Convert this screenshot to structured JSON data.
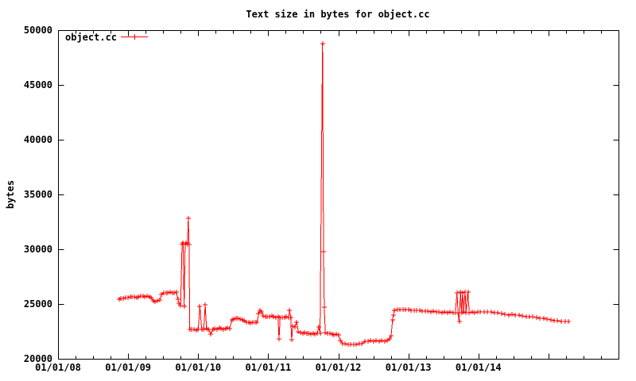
{
  "title": "Text size in bytes for object.cc",
  "colors": {
    "series": "#ff0000",
    "axis": "#000000",
    "background": "#ffffff"
  },
  "chart_data": {
    "type": "line",
    "title": "Text size in bytes for object.cc",
    "xlabel": "",
    "ylabel": "bytes",
    "grid": false,
    "legend_position": "top-left",
    "legend": {
      "label": "object.cc",
      "color": "#ff0000",
      "marker": "plus"
    },
    "ylim": [
      20000,
      50000
    ],
    "y_ticks": [
      {
        "value": 20000,
        "label": "20000"
      },
      {
        "value": 25000,
        "label": "25000"
      },
      {
        "value": 30000,
        "label": "30000"
      },
      {
        "value": 35000,
        "label": "35000"
      },
      {
        "value": 40000,
        "label": "40000"
      },
      {
        "value": 45000,
        "label": "45000"
      },
      {
        "value": 50000,
        "label": "50000"
      }
    ],
    "x_range_years": [
      2008,
      2016
    ],
    "x_minor_tick_interval_years": 0.25,
    "x_ticks": [
      {
        "year": 2008,
        "label": "01/01/08"
      },
      {
        "year": 2009,
        "label": "01/01/09"
      },
      {
        "year": 2010,
        "label": "01/01/10"
      },
      {
        "year": 2011,
        "label": "01/01/11"
      },
      {
        "year": 2012,
        "label": "01/01/12"
      },
      {
        "year": 2013,
        "label": "01/01/13"
      },
      {
        "year": 2014,
        "label": "01/01/14"
      }
    ],
    "series": [
      {
        "name": "object.cc",
        "color": "#ff0000",
        "marker": "plus",
        "points": [
          [
            2008.87,
            25400
          ],
          [
            2008.9,
            25480
          ],
          [
            2008.93,
            25520
          ],
          [
            2008.96,
            25560
          ],
          [
            2009.0,
            25600
          ],
          [
            2009.03,
            25640
          ],
          [
            2009.06,
            25680
          ],
          [
            2009.09,
            25620
          ],
          [
            2009.12,
            25560
          ],
          [
            2009.15,
            25680
          ],
          [
            2009.18,
            25740
          ],
          [
            2009.21,
            25700
          ],
          [
            2009.24,
            25640
          ],
          [
            2009.27,
            25700
          ],
          [
            2009.3,
            25660
          ],
          [
            2009.33,
            25600
          ],
          [
            2009.36,
            25280
          ],
          [
            2009.39,
            25200
          ],
          [
            2009.42,
            25260
          ],
          [
            2009.45,
            25360
          ],
          [
            2009.48,
            25900
          ],
          [
            2009.51,
            26000
          ],
          [
            2009.54,
            26040
          ],
          [
            2009.57,
            26000
          ],
          [
            2009.6,
            26080
          ],
          [
            2009.63,
            26040
          ],
          [
            2009.66,
            26000
          ],
          [
            2009.69,
            26100
          ],
          [
            2009.71,
            25400
          ],
          [
            2009.73,
            25050
          ],
          [
            2009.75,
            24850
          ],
          [
            2009.77,
            30400
          ],
          [
            2009.785,
            30550
          ],
          [
            2009.8,
            24800
          ],
          [
            2009.815,
            30450
          ],
          [
            2009.83,
            30600
          ],
          [
            2009.845,
            30400
          ],
          [
            2009.86,
            32800
          ],
          [
            2009.87,
            30400
          ],
          [
            2009.88,
            22650
          ],
          [
            2009.91,
            22700
          ],
          [
            2009.94,
            22650
          ],
          [
            2009.97,
            22600
          ],
          [
            2010.0,
            22700
          ],
          [
            2010.025,
            24750
          ],
          [
            2010.05,
            22650
          ],
          [
            2010.08,
            22700
          ],
          [
            2010.1,
            24900
          ],
          [
            2010.12,
            22750
          ],
          [
            2010.15,
            22700
          ],
          [
            2010.18,
            22250
          ],
          [
            2010.21,
            22700
          ],
          [
            2010.24,
            22760
          ],
          [
            2010.27,
            22700
          ],
          [
            2010.3,
            22800
          ],
          [
            2010.33,
            22740
          ],
          [
            2010.36,
            22700
          ],
          [
            2010.39,
            22760
          ],
          [
            2010.42,
            22800
          ],
          [
            2010.45,
            22750
          ],
          [
            2010.48,
            23560
          ],
          [
            2010.51,
            23620
          ],
          [
            2010.54,
            23660
          ],
          [
            2010.57,
            23700
          ],
          [
            2010.6,
            23640
          ],
          [
            2010.63,
            23580
          ],
          [
            2010.66,
            23480
          ],
          [
            2010.69,
            23350
          ],
          [
            2010.72,
            23300
          ],
          [
            2010.75,
            23260
          ],
          [
            2010.78,
            23300
          ],
          [
            2010.81,
            23340
          ],
          [
            2010.84,
            23300
          ],
          [
            2010.865,
            24100
          ],
          [
            2010.885,
            24450
          ],
          [
            2010.905,
            24300
          ],
          [
            2010.93,
            23900
          ],
          [
            2010.96,
            23860
          ],
          [
            2010.99,
            23820
          ],
          [
            2011.02,
            23860
          ],
          [
            2011.05,
            23900
          ],
          [
            2011.08,
            23850
          ],
          [
            2011.11,
            23800
          ],
          [
            2011.14,
            23850
          ],
          [
            2011.155,
            21800
          ],
          [
            2011.17,
            23800
          ],
          [
            2011.2,
            23760
          ],
          [
            2011.23,
            23800
          ],
          [
            2011.26,
            23840
          ],
          [
            2011.29,
            23800
          ],
          [
            2011.305,
            24420
          ],
          [
            2011.32,
            23800
          ],
          [
            2011.335,
            21750
          ],
          [
            2011.35,
            22950
          ],
          [
            2011.38,
            22900
          ],
          [
            2011.405,
            23350
          ],
          [
            2011.43,
            22450
          ],
          [
            2011.46,
            22400
          ],
          [
            2011.49,
            22350
          ],
          [
            2011.52,
            22400
          ],
          [
            2011.55,
            22350
          ],
          [
            2011.58,
            22300
          ],
          [
            2011.61,
            22250
          ],
          [
            2011.64,
            22300
          ],
          [
            2011.67,
            22250
          ],
          [
            2011.7,
            22300
          ],
          [
            2011.72,
            22900
          ],
          [
            2011.74,
            22350
          ],
          [
            2011.775,
            48800
          ],
          [
            2011.79,
            29800
          ],
          [
            2011.8,
            24700
          ],
          [
            2011.815,
            22400
          ],
          [
            2011.85,
            22350
          ],
          [
            2011.88,
            22300
          ],
          [
            2011.91,
            22250
          ],
          [
            2011.94,
            22200
          ],
          [
            2011.97,
            22250
          ],
          [
            2012.0,
            22200
          ],
          [
            2012.03,
            21700
          ],
          [
            2012.06,
            21400
          ],
          [
            2012.1,
            21350
          ],
          [
            2012.14,
            21300
          ],
          [
            2012.18,
            21330
          ],
          [
            2012.22,
            21300
          ],
          [
            2012.26,
            21340
          ],
          [
            2012.3,
            21360
          ],
          [
            2012.34,
            21400
          ],
          [
            2012.38,
            21560
          ],
          [
            2012.42,
            21600
          ],
          [
            2012.46,
            21640
          ],
          [
            2012.5,
            21600
          ],
          [
            2012.54,
            21650
          ],
          [
            2012.58,
            21600
          ],
          [
            2012.62,
            21650
          ],
          [
            2012.66,
            21600
          ],
          [
            2012.7,
            21660
          ],
          [
            2012.73,
            21800
          ],
          [
            2012.755,
            22100
          ],
          [
            2012.775,
            23550
          ],
          [
            2012.785,
            24000
          ],
          [
            2012.8,
            24450
          ],
          [
            2012.84,
            24500
          ],
          [
            2012.88,
            24460
          ],
          [
            2012.92,
            24500
          ],
          [
            2012.96,
            24460
          ],
          [
            2013.0,
            24500
          ],
          [
            2013.04,
            24450
          ],
          [
            2013.08,
            24400
          ],
          [
            2013.12,
            24440
          ],
          [
            2013.16,
            24400
          ],
          [
            2013.2,
            24350
          ],
          [
            2013.24,
            24380
          ],
          [
            2013.28,
            24330
          ],
          [
            2013.32,
            24300
          ],
          [
            2013.36,
            24330
          ],
          [
            2013.4,
            24300
          ],
          [
            2013.44,
            24270
          ],
          [
            2013.48,
            24230
          ],
          [
            2013.52,
            24260
          ],
          [
            2013.56,
            24220
          ],
          [
            2013.6,
            24250
          ],
          [
            2013.64,
            24220
          ],
          [
            2013.67,
            24200
          ],
          [
            2013.695,
            26050
          ],
          [
            2013.71,
            24200
          ],
          [
            2013.725,
            23400
          ],
          [
            2013.745,
            26100
          ],
          [
            2013.76,
            24220
          ],
          [
            2013.775,
            26050
          ],
          [
            2013.79,
            24250
          ],
          [
            2013.81,
            26100
          ],
          [
            2013.825,
            24200
          ],
          [
            2013.85,
            26100
          ],
          [
            2013.87,
            24220
          ],
          [
            2013.91,
            24250
          ],
          [
            2013.95,
            24200
          ],
          [
            2013.99,
            24260
          ],
          [
            2014.03,
            24300
          ],
          [
            2014.08,
            24260
          ],
          [
            2014.13,
            24300
          ],
          [
            2014.18,
            24260
          ],
          [
            2014.23,
            24220
          ],
          [
            2014.28,
            24170
          ],
          [
            2014.33,
            24120
          ],
          [
            2014.38,
            24070
          ],
          [
            2014.43,
            24020
          ],
          [
            2014.48,
            24060
          ],
          [
            2014.53,
            24010
          ],
          [
            2014.58,
            23960
          ],
          [
            2014.63,
            23900
          ],
          [
            2014.68,
            23860
          ],
          [
            2014.73,
            23810
          ],
          [
            2014.78,
            23850
          ],
          [
            2014.83,
            23760
          ],
          [
            2014.88,
            23700
          ],
          [
            2014.93,
            23660
          ],
          [
            2014.98,
            23620
          ],
          [
            2015.03,
            23560
          ],
          [
            2015.08,
            23510
          ],
          [
            2015.13,
            23460
          ],
          [
            2015.18,
            23420
          ],
          [
            2015.24,
            23400
          ],
          [
            2015.28,
            23400
          ]
        ]
      }
    ]
  }
}
